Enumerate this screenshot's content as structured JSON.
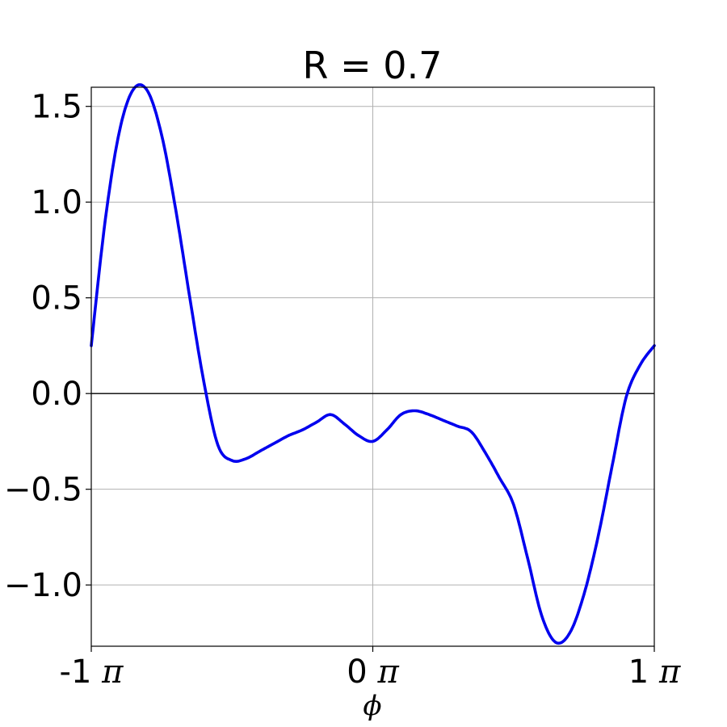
{
  "chart_data": {
    "type": "line",
    "title": "R = 0.7",
    "xlabel": "ϕ",
    "ylabel": "",
    "xlim": [
      -3.14159,
      3.14159
    ],
    "ylim": [
      -1.32,
      1.6
    ],
    "grid": true,
    "zero_line": true,
    "x_ticks": [
      {
        "value": -3.14159,
        "label": "-1 π"
      },
      {
        "value": 0,
        "label": "0 π"
      },
      {
        "value": 3.14159,
        "label": "1 π"
      }
    ],
    "y_ticks": [
      {
        "value": 1.5,
        "label": "1.5"
      },
      {
        "value": 1.0,
        "label": "1.0"
      },
      {
        "value": 0.5,
        "label": "0.5"
      },
      {
        "value": 0.0,
        "label": "0.0"
      },
      {
        "value": -0.5,
        "label": "−0.5"
      },
      {
        "value": -1.0,
        "label": "−1.0"
      }
    ],
    "series": [
      {
        "color": "#0000ee",
        "x": [
          -3.1416,
          -2.9845,
          -2.8274,
          -2.6704,
          -2.5133,
          -2.3562,
          -2.1991,
          -2.042,
          -1.885,
          -1.7279,
          -1.5708,
          -1.4137,
          -1.2566,
          -1.0996,
          -0.9425,
          -0.7854,
          -0.6283,
          -0.4712,
          -0.3142,
          -0.1571,
          0.0,
          0.1571,
          0.3142,
          0.4712,
          0.6283,
          0.7854,
          0.9425,
          1.0996,
          1.2566,
          1.4137,
          1.5708,
          1.7279,
          1.885,
          2.042,
          2.1991,
          2.3562,
          2.5133,
          2.6704,
          2.8274,
          2.9845,
          3.1416
        ],
        "y": [
          0.25,
          0.91,
          1.37,
          1.59,
          1.58,
          1.35,
          0.96,
          0.5,
          0.06,
          -0.27,
          -0.35,
          -0.34,
          -0.3,
          -0.26,
          -0.22,
          -0.19,
          -0.15,
          -0.11,
          -0.16,
          -0.22,
          -0.25,
          -0.19,
          -0.11,
          -0.09,
          -0.11,
          -0.14,
          -0.17,
          -0.2,
          -0.31,
          -0.44,
          -0.58,
          -0.86,
          -1.16,
          -1.3,
          -1.25,
          -1.05,
          -0.75,
          -0.38,
          -0.02,
          0.15,
          0.25
        ]
      }
    ]
  }
}
